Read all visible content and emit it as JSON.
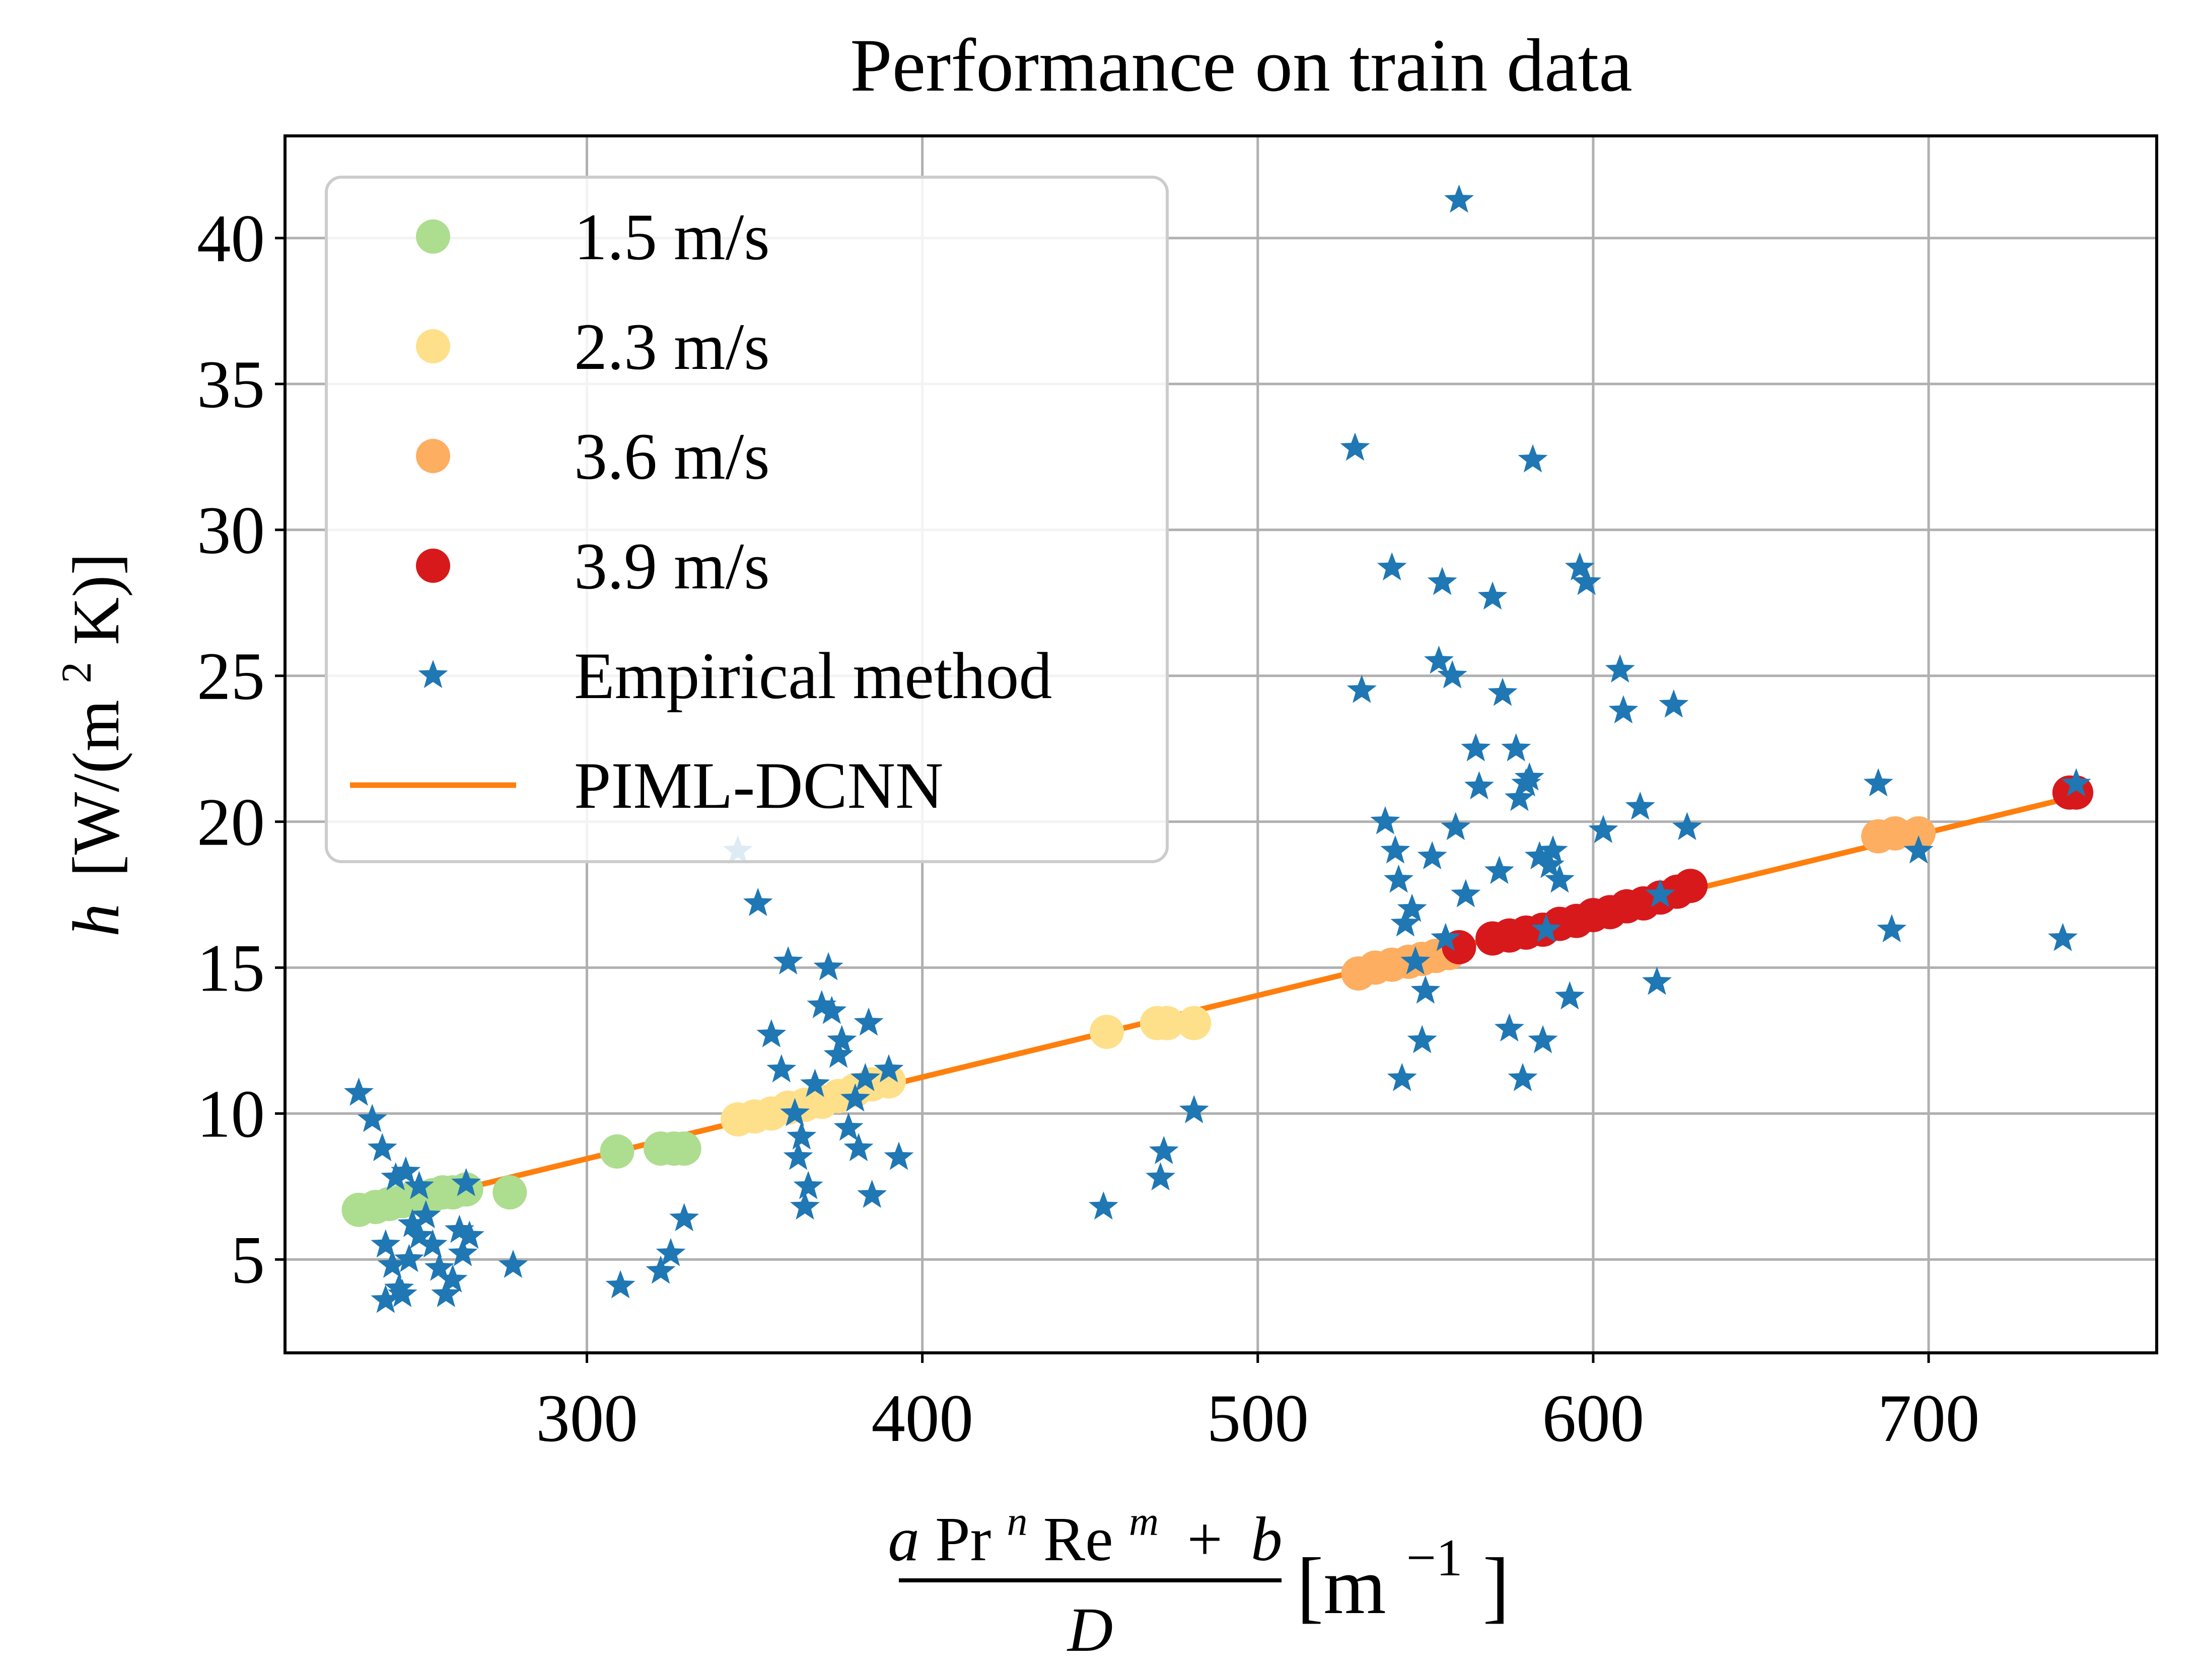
{
  "chart_data": {
    "type": "scatter",
    "title": "Performance on train data",
    "xlabel": {
      "numerator": {
        "a": "a",
        "pr": "Pr",
        "n": "n",
        "re": "Re",
        "m": "m",
        "plus": "+",
        "b": "b"
      },
      "denominator": "D",
      "unit_open": "[m",
      "unit_exp": "−1",
      "unit_close": "]"
    },
    "ylabel": {
      "var": "h",
      "open": "[W/(m",
      "exp": "2",
      "close": "K)]"
    },
    "xlim": [
      210,
      768
    ],
    "ylim": [
      1.8,
      43.5
    ],
    "xticks": [
      300,
      400,
      500,
      600,
      700
    ],
    "yticks": [
      5,
      10,
      15,
      20,
      25,
      30,
      35,
      40
    ],
    "grid": true,
    "legend_position": "top-left",
    "colors": {
      "v15": "#addd8e",
      "v23": "#fee08b",
      "v36": "#fdae61",
      "v39": "#d7191c",
      "empirical": "#1f77b4",
      "line": "#ff7f0e"
    },
    "series": [
      {
        "name": "1.5 m/s",
        "key": "v15",
        "marker": "circle",
        "points": [
          [
            232,
            6.7
          ],
          [
            237,
            6.8
          ],
          [
            241,
            6.9
          ],
          [
            245,
            7.0
          ],
          [
            248,
            7.1
          ],
          [
            251,
            7.1
          ],
          [
            254,
            7.2
          ],
          [
            257,
            7.3
          ],
          [
            260,
            7.3
          ],
          [
            264,
            7.4
          ],
          [
            277,
            7.3
          ],
          [
            309,
            8.7
          ],
          [
            322,
            8.8
          ],
          [
            326,
            8.8
          ],
          [
            329,
            8.8
          ]
        ]
      },
      {
        "name": "2.3 m/s",
        "key": "v23",
        "marker": "circle",
        "points": [
          [
            345,
            9.8
          ],
          [
            350,
            9.9
          ],
          [
            355,
            10.0
          ],
          [
            360,
            10.2
          ],
          [
            365,
            10.3
          ],
          [
            370,
            10.4
          ],
          [
            375,
            10.6
          ],
          [
            380,
            10.8
          ],
          [
            385,
            11.0
          ],
          [
            390,
            11.1
          ],
          [
            455,
            12.8
          ],
          [
            470,
            13.1
          ],
          [
            473,
            13.1
          ],
          [
            481,
            13.1
          ]
        ]
      },
      {
        "name": "3.6 m/s",
        "key": "v36",
        "marker": "circle",
        "points": [
          [
            530,
            14.8
          ],
          [
            535,
            15.0
          ],
          [
            540,
            15.1
          ],
          [
            545,
            15.2
          ],
          [
            549,
            15.3
          ],
          [
            553,
            15.4
          ],
          [
            557,
            15.5
          ],
          [
            685,
            19.5
          ],
          [
            690,
            19.6
          ],
          [
            697,
            19.6
          ]
        ]
      },
      {
        "name": "3.9 m/s",
        "key": "v39",
        "marker": "circle",
        "points": [
          [
            560,
            15.7
          ],
          [
            570,
            16.0
          ],
          [
            575,
            16.1
          ],
          [
            580,
            16.2
          ],
          [
            585,
            16.3
          ],
          [
            590,
            16.5
          ],
          [
            595,
            16.6
          ],
          [
            600,
            16.8
          ],
          [
            605,
            16.9
          ],
          [
            610,
            17.1
          ],
          [
            615,
            17.2
          ],
          [
            620,
            17.4
          ],
          [
            625,
            17.6
          ],
          [
            629,
            17.8
          ],
          [
            742,
            21.0
          ],
          [
            744,
            21.0
          ]
        ]
      },
      {
        "name": "Empirical method",
        "key": "empirical",
        "marker": "star",
        "points": [
          [
            232,
            10.7
          ],
          [
            236,
            9.8
          ],
          [
            239,
            8.8
          ],
          [
            243,
            7.8
          ],
          [
            246,
            8.0
          ],
          [
            250,
            7.5
          ],
          [
            240,
            5.5
          ],
          [
            242,
            4.8
          ],
          [
            244,
            4.0
          ],
          [
            245,
            3.8
          ],
          [
            247,
            5.0
          ],
          [
            248,
            6.2
          ],
          [
            250,
            5.8
          ],
          [
            252,
            6.5
          ],
          [
            254,
            5.5
          ],
          [
            256,
            4.7
          ],
          [
            258,
            3.8
          ],
          [
            260,
            4.3
          ],
          [
            262,
            6.0
          ],
          [
            263,
            5.2
          ],
          [
            265,
            5.8
          ],
          [
            240,
            3.6
          ],
          [
            278,
            4.8
          ],
          [
            264,
            7.6
          ],
          [
            310,
            4.1
          ],
          [
            322,
            4.6
          ],
          [
            325,
            5.2
          ],
          [
            329,
            6.4
          ],
          [
            345,
            19.0
          ],
          [
            351,
            17.2
          ],
          [
            355,
            12.7
          ],
          [
            358,
            11.5
          ],
          [
            360,
            15.2
          ],
          [
            362,
            10.0
          ],
          [
            363,
            8.5
          ],
          [
            364,
            9.2
          ],
          [
            365,
            6.8
          ],
          [
            366,
            7.5
          ],
          [
            368,
            11.0
          ],
          [
            370,
            13.7
          ],
          [
            372,
            15.0
          ],
          [
            373,
            13.5
          ],
          [
            375,
            12.0
          ],
          [
            376,
            12.5
          ],
          [
            378,
            9.5
          ],
          [
            380,
            10.5
          ],
          [
            381,
            8.8
          ],
          [
            383,
            11.2
          ],
          [
            384,
            13.1
          ],
          [
            385,
            7.2
          ],
          [
            390,
            11.5
          ],
          [
            393,
            8.5
          ],
          [
            454,
            6.8
          ],
          [
            471,
            7.8
          ],
          [
            472,
            8.7
          ],
          [
            481,
            10.1
          ],
          [
            529,
            32.8
          ],
          [
            531,
            24.5
          ],
          [
            538,
            20.0
          ],
          [
            540,
            28.7
          ],
          [
            541,
            19.0
          ],
          [
            542,
            18.0
          ],
          [
            543,
            11.2
          ],
          [
            544,
            16.5
          ],
          [
            546,
            17.0
          ],
          [
            547,
            15.2
          ],
          [
            549,
            12.5
          ],
          [
            550,
            14.2
          ],
          [
            552,
            18.8
          ],
          [
            554,
            25.5
          ],
          [
            555,
            28.2
          ],
          [
            556,
            16.0
          ],
          [
            558,
            25.0
          ],
          [
            559,
            19.8
          ],
          [
            560,
            41.3
          ],
          [
            562,
            17.5
          ],
          [
            565,
            22.5
          ],
          [
            566,
            21.2
          ],
          [
            570,
            27.7
          ],
          [
            572,
            18.3
          ],
          [
            573,
            24.4
          ],
          [
            575,
            12.9
          ],
          [
            577,
            22.5
          ],
          [
            578,
            20.8
          ],
          [
            579,
            11.2
          ],
          [
            580,
            21.3
          ],
          [
            581,
            21.5
          ],
          [
            582,
            32.4
          ],
          [
            584,
            18.8
          ],
          [
            585,
            12.5
          ],
          [
            586,
            16.3
          ],
          [
            587,
            18.5
          ],
          [
            588,
            19.0
          ],
          [
            590,
            18.0
          ],
          [
            593,
            14.0
          ],
          [
            596,
            28.7
          ],
          [
            598,
            28.2
          ],
          [
            603,
            19.7
          ],
          [
            608,
            25.2
          ],
          [
            609,
            23.8
          ],
          [
            614,
            20.5
          ],
          [
            619,
            14.5
          ],
          [
            620,
            17.5
          ],
          [
            624,
            24.0
          ],
          [
            628,
            19.8
          ],
          [
            685,
            21.3
          ],
          [
            689,
            16.3
          ],
          [
            697,
            19.0
          ],
          [
            740,
            16.0
          ],
          [
            744,
            21.3
          ]
        ]
      },
      {
        "name": "PIML-DCNN",
        "key": "line",
        "marker": "line",
        "points": [
          [
            232,
            6.55
          ],
          [
            745,
            20.9
          ]
        ]
      }
    ]
  }
}
